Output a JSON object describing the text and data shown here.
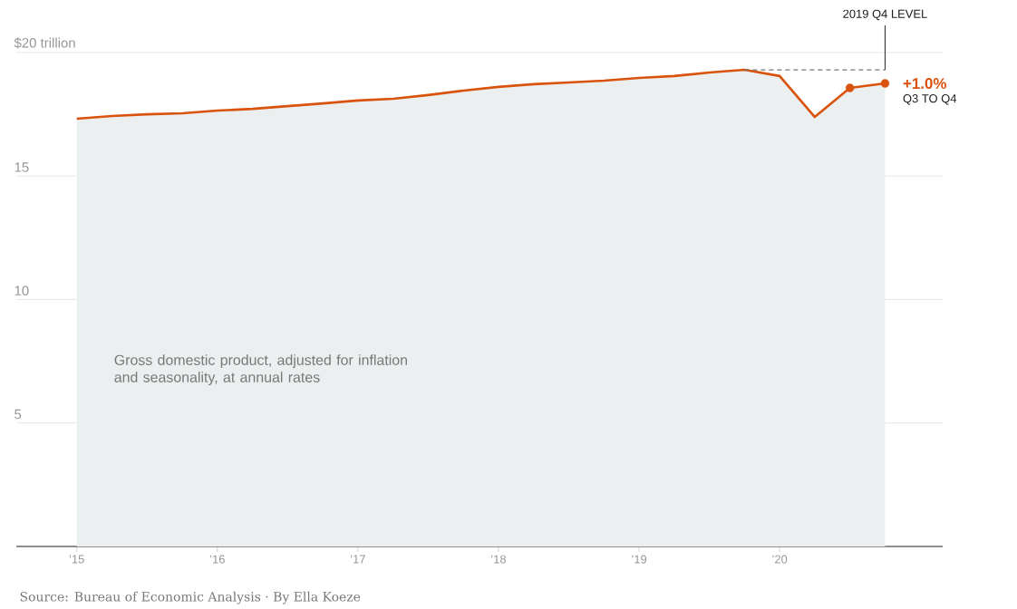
{
  "chart_data": {
    "type": "area",
    "x": [
      2015,
      2015.25,
      2015.5,
      2015.75,
      2016,
      2016.25,
      2016.5,
      2016.75,
      2017,
      2017.25,
      2017.5,
      2017.75,
      2018,
      2018.25,
      2018.5,
      2018.75,
      2019,
      2019.25,
      2019.5,
      2019.75,
      2020,
      2020.25,
      2020.5,
      2020.75
    ],
    "series": [
      {
        "color": "#d9530d",
        "values": [
          17.32,
          17.43,
          17.5,
          17.54,
          17.65,
          17.72,
          17.83,
          17.94,
          18.06,
          18.13,
          18.28,
          18.46,
          18.61,
          18.72,
          18.79,
          18.86,
          18.97,
          19.05,
          19.19,
          19.3,
          19.05,
          17.39,
          18.57,
          18.75
        ]
      },
      {
        "type": "scatter",
        "color": "#d9530d",
        "marker": "circle",
        "x": [
          2020.5,
          2020.75
        ],
        "values": [
          18.57,
          18.75
        ]
      }
    ],
    "xlim": [
      2014.57,
      2021.16
    ],
    "xticks": [
      {
        "value": 2015,
        "label": "’15"
      },
      {
        "value": 2016,
        "label": "’16"
      },
      {
        "value": 2017,
        "label": "’17"
      },
      {
        "value": 2018,
        "label": "’18"
      },
      {
        "value": 2019,
        "label": "’19"
      },
      {
        "value": 2020,
        "label": "’20"
      }
    ],
    "ylim": [
      0,
      20
    ],
    "yticks": [
      {
        "value": 0,
        "label": null
      },
      5,
      10,
      15,
      {
        "value": 20,
        "label": "$20 trillion"
      }
    ],
    "grid": "y",
    "ref_lines": [
      {
        "axis": "y",
        "value": 19.3,
        "label": "2019 Q4 LEVEL",
        "line_style": "dashed",
        "color": "#777777"
      }
    ],
    "annotations": [
      {
        "text": "+1.0%",
        "x": 2020.75,
        "y": 18.75
      },
      "Q3 TO Q4",
      "Gross domestic product, adjusted for inflation and seasonality, at annual rates",
      "Source: Bureau of Economic Analysis · By Ella Koeze"
    ]
  }
}
